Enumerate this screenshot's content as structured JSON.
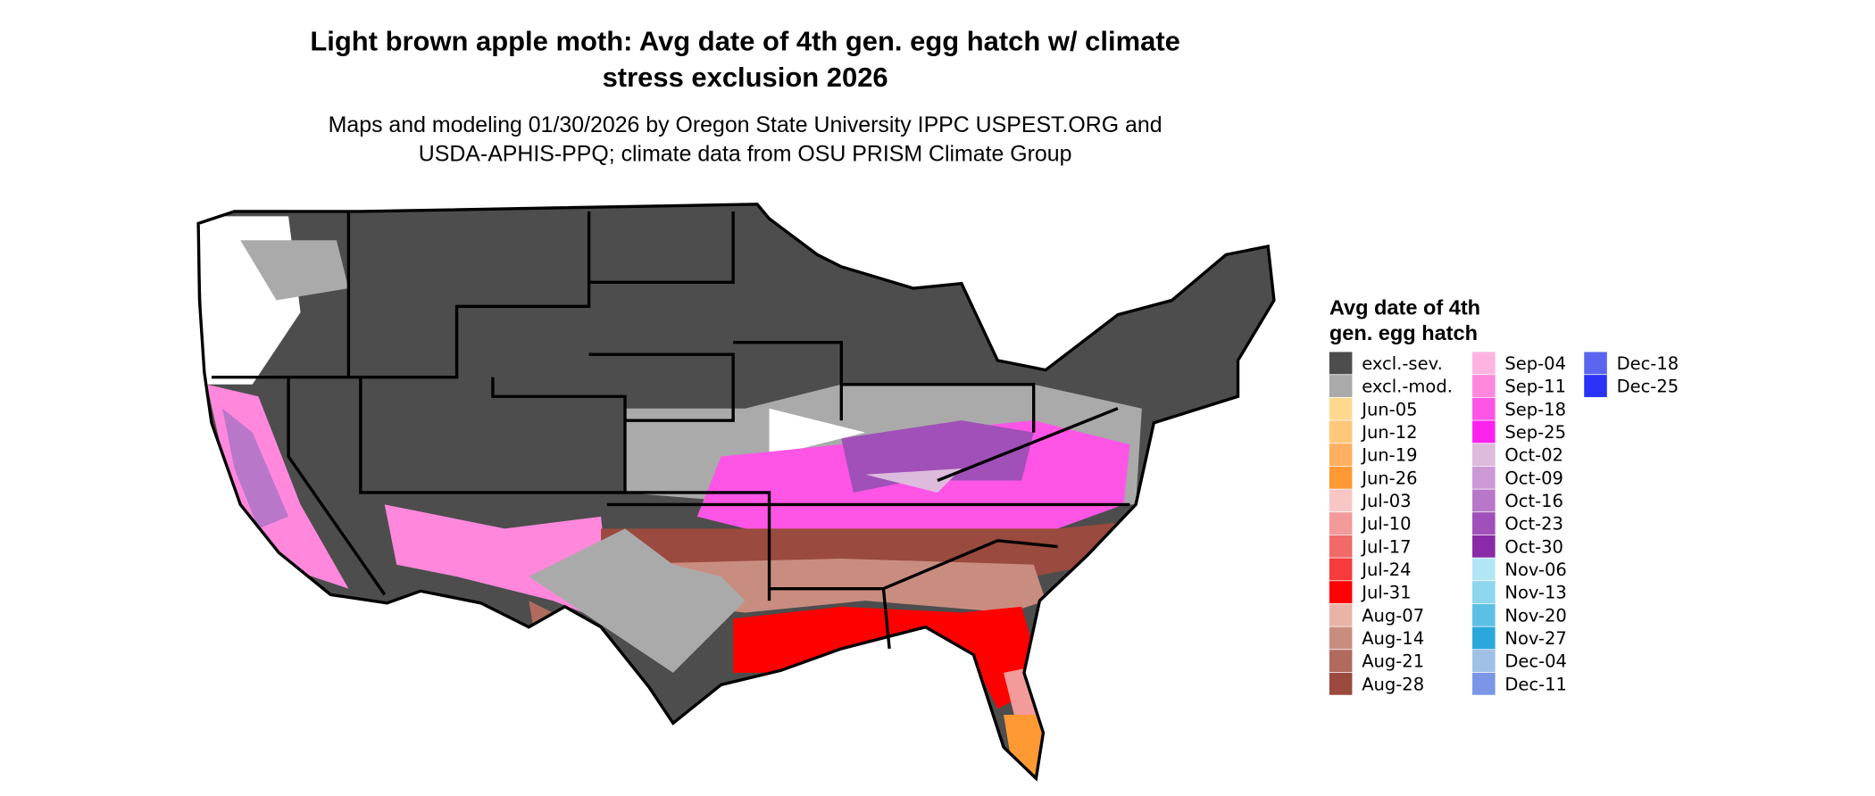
{
  "title": [
    "Light brown apple moth: Avg date of 4th gen. egg hatch w/ climate",
    "stress exclusion 2026"
  ],
  "subtitle": [
    "Maps and modeling 01/30/2026 by Oregon State University IPPC USPEST.ORG and",
    "USDA-APHIS-PPQ; climate data from OSU PRISM Climate Group"
  ],
  "legend": {
    "title": [
      "Avg date of 4th",
      "gen. egg hatch"
    ],
    "items": [
      {
        "label": "excl.-sev.",
        "color": "#4d4d4d"
      },
      {
        "label": "excl.-mod.",
        "color": "#aaaaaa"
      },
      {
        "label": "Jun-05",
        "color": "#ffd98f"
      },
      {
        "label": "Jun-12",
        "color": "#ffc77a"
      },
      {
        "label": "Jun-19",
        "color": "#ffb060"
      },
      {
        "label": "Jun-26",
        "color": "#ff9933"
      },
      {
        "label": "Jul-03",
        "color": "#f9c6c6"
      },
      {
        "label": "Jul-10",
        "color": "#f39a9a"
      },
      {
        "label": "Jul-17",
        "color": "#f06a6a"
      },
      {
        "label": "Jul-24",
        "color": "#f53b3b"
      },
      {
        "label": "Jul-31",
        "color": "#ff0000"
      },
      {
        "label": "Aug-07",
        "color": "#e9b3a8"
      },
      {
        "label": "Aug-14",
        "color": "#c98d80"
      },
      {
        "label": "Aug-21",
        "color": "#b06b5e"
      },
      {
        "label": "Aug-28",
        "color": "#9a4a3e"
      },
      {
        "label": "Sep-04",
        "color": "#ffb3e0"
      },
      {
        "label": "Sep-11",
        "color": "#ff88dd"
      },
      {
        "label": "Sep-18",
        "color": "#ff55e6"
      },
      {
        "label": "Sep-25",
        "color": "#ff22ee"
      },
      {
        "label": "Oct-02",
        "color": "#ddbbdd"
      },
      {
        "label": "Oct-09",
        "color": "#cc99d6"
      },
      {
        "label": "Oct-16",
        "color": "#b877c9"
      },
      {
        "label": "Oct-23",
        "color": "#a050b8"
      },
      {
        "label": "Oct-30",
        "color": "#8a2aa8"
      },
      {
        "label": "Nov-06",
        "color": "#b3e6f5"
      },
      {
        "label": "Nov-13",
        "color": "#8dd6ee"
      },
      {
        "label": "Nov-20",
        "color": "#5cc0e6"
      },
      {
        "label": "Nov-27",
        "color": "#2aa8dc"
      },
      {
        "label": "Dec-04",
        "color": "#a0c0e6"
      },
      {
        "label": "Dec-11",
        "color": "#7b96e6"
      },
      {
        "label": "Dec-18",
        "color": "#5a66ee"
      },
      {
        "label": "Dec-25",
        "color": "#2a33f5"
      }
    ]
  }
}
